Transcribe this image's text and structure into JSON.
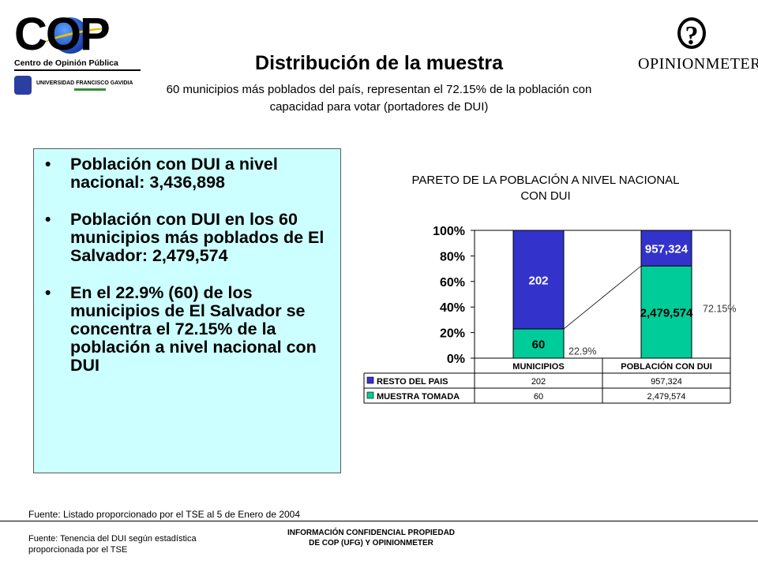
{
  "header": {
    "cop_logo_text": "COP",
    "cop_subtitle": "Centro de Opinión Pública",
    "ufg_name": "UNIVERSIDAD FRANCISCO GAVIDIA",
    "opinionmeter_mark": "?",
    "opinionmeter_text": "OPINIONMETER",
    "title": "Distribución de la muestra",
    "subtitle": "60 municipios más poblados del país, representan el 72.15% de la población con capacidad para votar (portadores de DUI)"
  },
  "info_box": {
    "items": [
      {
        "bullet": "•",
        "text": "Población con DUI a nivel nacional: 3,436,898"
      },
      {
        "bullet": "•",
        "text": "Población con DUI en los 60 municipios más poblados de El Salvador: 2,479,574"
      },
      {
        "bullet": "•",
        "text": "En el 22.9% (60) de los municipios de El Salvador se concentra el 72.15% de la población a nivel nacional con DUI"
      }
    ],
    "background": "#ccffff"
  },
  "chart_data": {
    "type": "bar",
    "stacked": "percent",
    "title": "PARETO DE LA POBLACIÓN A NIVEL NACIONAL CON DUI",
    "title_lines": [
      "PARETO DE LA POBLACIÓN A NIVEL NACIONAL",
      "CON DUI"
    ],
    "categories": [
      "MUNICIPIOS",
      "POBLACIÓN CON DUI"
    ],
    "series": [
      {
        "name": "MUESTRA TOMADA",
        "values": [
          60,
          2479574
        ],
        "labels": [
          "60",
          "2,479,574"
        ],
        "color": "#00cc99"
      },
      {
        "name": "RESTO DEL PAIS",
        "values": [
          202,
          957324
        ],
        "labels": [
          "202",
          "957,324"
        ],
        "color": "#3333cc"
      }
    ],
    "table_rows": [
      {
        "label": "RESTO DEL PAIS",
        "values": [
          "202",
          "957,324"
        ],
        "color": "#3333cc"
      },
      {
        "label": "MUESTRA TOMADA",
        "values": [
          "60",
          "2,479,574"
        ],
        "color": "#00cc99"
      }
    ],
    "yticks": [
      "0%",
      "20%",
      "40%",
      "60%",
      "80%",
      "100%"
    ],
    "ylim": [
      0,
      100
    ],
    "annotations": [
      "22.9%",
      "72.15%"
    ],
    "pareto_line": [
      22.9,
      72.15
    ],
    "grid": false
  },
  "footer": {
    "source_tse": "Fuente: Listado proporcionado por el TSE al 5 de Enero de 2004",
    "source_dui": "Fuente: Tenencia del DUI según estadística proporcionada por el TSE",
    "confidential_line1": "INFORMACIÓN CONFIDENCIAL PROPIEDAD",
    "confidential_line2": "DE COP (UFG) Y OPINIONMETER"
  }
}
